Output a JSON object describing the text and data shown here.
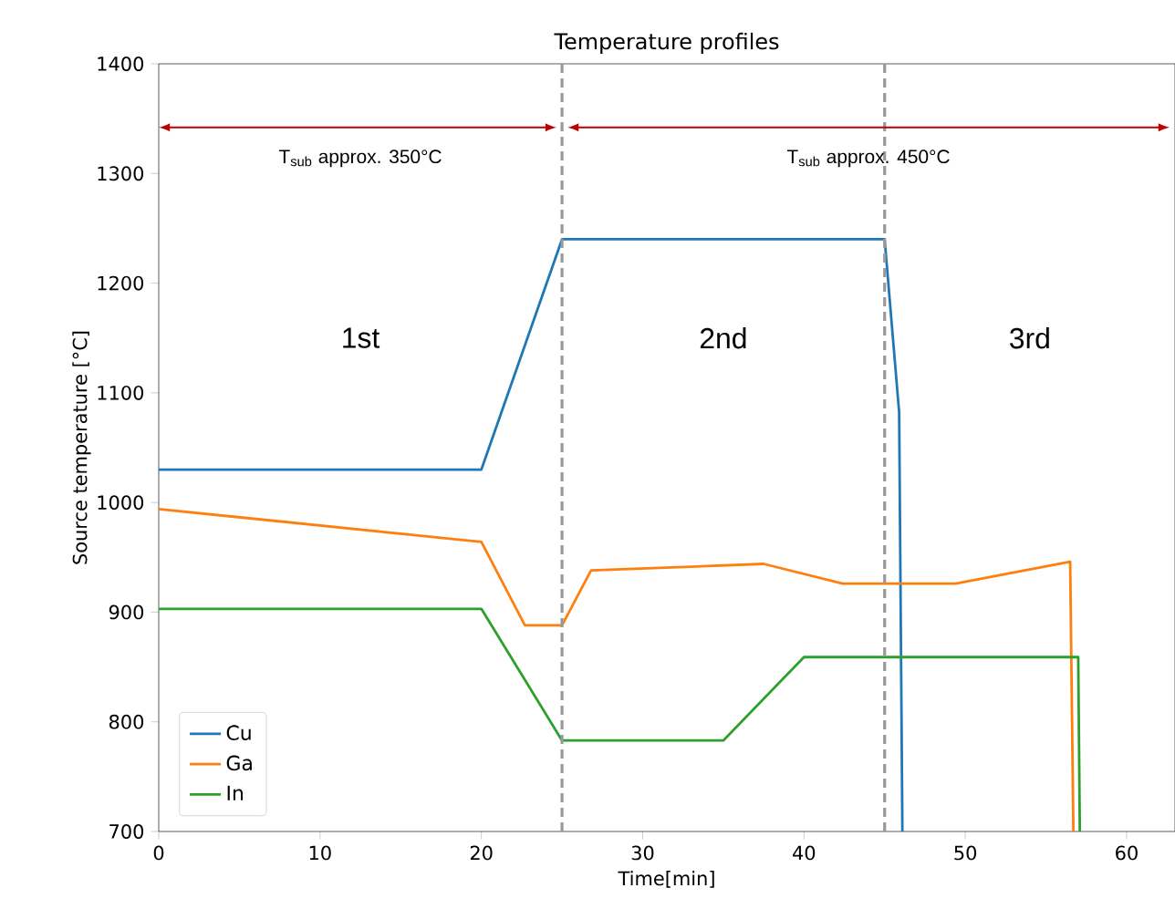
{
  "chart_data": {
    "type": "line",
    "title": "Temperature profiles",
    "xlabel": "Time[min]",
    "ylabel": "Source temperature [°C]",
    "xlim": [
      0,
      63
    ],
    "ylim": [
      700,
      1400
    ],
    "xticks": [
      0,
      10,
      20,
      30,
      40,
      50,
      60
    ],
    "yticks": [
      700,
      800,
      900,
      1000,
      1100,
      1200,
      1300,
      1400
    ],
    "grid": false,
    "legend": "bottom left",
    "marker": "none",
    "line_style": "solid",
    "series": [
      {
        "name": "Cu",
        "color": "#1f77b4",
        "x": [
          0,
          20,
          25,
          45,
          45.9,
          46.1
        ],
        "values": [
          1030,
          1030,
          1240,
          1240,
          1082,
          700
        ]
      },
      {
        "name": "Ga",
        "color": "#ff7f0e",
        "x": [
          0,
          20,
          22.7,
          25,
          26.8,
          37.5,
          42.4,
          49.4,
          56.5,
          56.7
        ],
        "values": [
          994,
          964,
          888,
          888,
          938,
          944,
          926,
          926,
          946,
          700
        ]
      },
      {
        "name": "In",
        "color": "#2ca02c",
        "x": [
          0,
          20,
          25,
          35,
          40,
          57,
          57.1
        ],
        "values": [
          903,
          903,
          783,
          783,
          859,
          859,
          700
        ]
      }
    ],
    "ref_lines": [
      {
        "axis": "x",
        "value": 25,
        "color": "#999999",
        "line_style": "dashed"
      },
      {
        "axis": "x",
        "value": 45,
        "color": "#999999",
        "line_style": "dashed"
      }
    ],
    "annotations": [
      "T$_{sub}$ approx. 350°C",
      "T$_{sub}$ approx. 450°C",
      "1st",
      "2nd",
      "3rd"
    ]
  }
}
